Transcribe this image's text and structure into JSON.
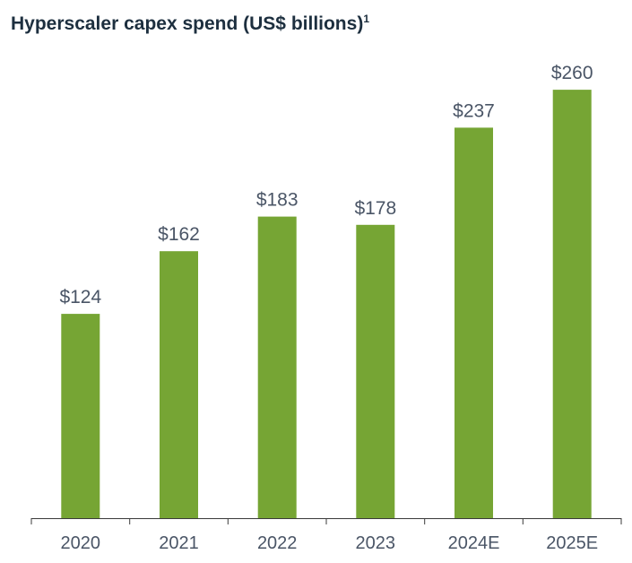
{
  "chart_data": {
    "type": "bar",
    "title": "Hyperscaler capex spend (US$ billions)",
    "title_superscript": "1",
    "categories": [
      "2020",
      "2021",
      "2022",
      "2023",
      "2024E",
      "2025E"
    ],
    "values": [
      124,
      162,
      183,
      178,
      237,
      260
    ],
    "value_labels": [
      "$124",
      "$162",
      "$183",
      "$178",
      "$237",
      "$260"
    ],
    "xlabel": "",
    "ylabel": "",
    "ylim": [
      0,
      260
    ],
    "grid": false,
    "legend": "none",
    "colors": {
      "bar": "#76a534",
      "axis": "#3b3b3b",
      "label": "#4a5566",
      "title": "#1d2f3f"
    }
  }
}
